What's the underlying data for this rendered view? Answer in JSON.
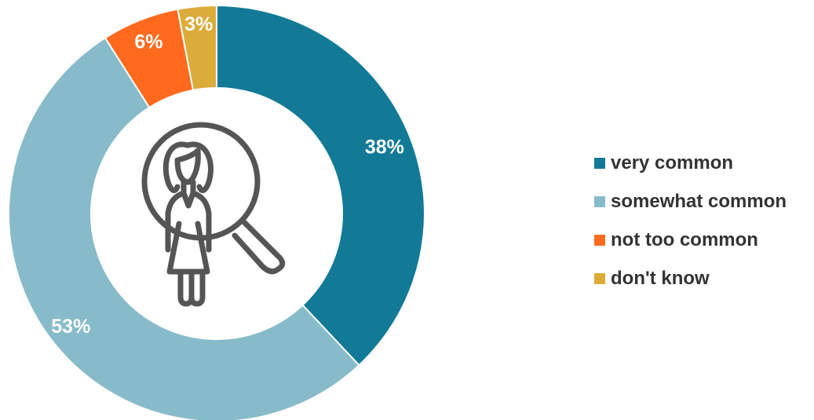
{
  "chart_data": {
    "type": "pie",
    "donut": true,
    "title": "",
    "categories": [
      "very common",
      "somewhat common",
      "not too common",
      "don't know"
    ],
    "values": [
      38,
      53,
      6,
      3
    ],
    "data_labels": [
      "38%",
      "53%",
      "6%",
      "3%"
    ],
    "colors": [
      "#127a97",
      "#87bbc9",
      "#ff6a1f",
      "#dcac3a"
    ],
    "legend_position": "right",
    "start_angle_deg": 0,
    "direction": "clockwise",
    "center_icon": "woman-magnifying-glass-icon"
  },
  "legend": {
    "items": [
      {
        "label": "very common",
        "color": "#127a97"
      },
      {
        "label": "somewhat common",
        "color": "#87bbc9"
      },
      {
        "label": "not too common",
        "color": "#ff6a1f"
      },
      {
        "label": "don't know",
        "color": "#dcac3a"
      }
    ]
  }
}
